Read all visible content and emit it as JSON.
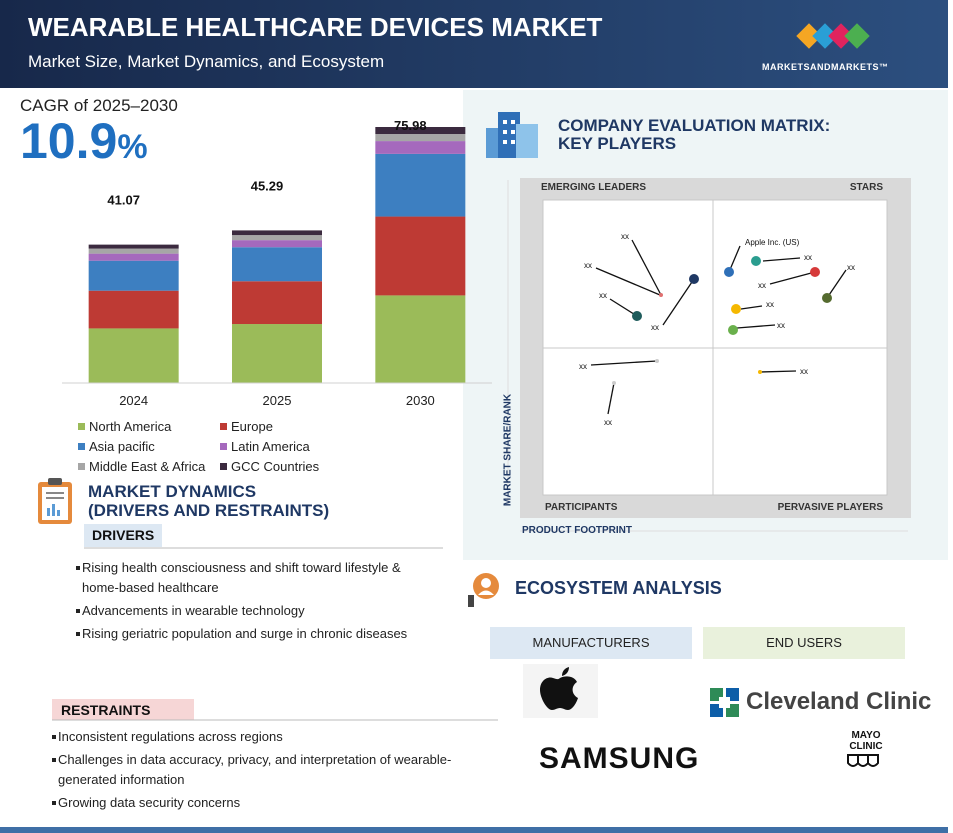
{
  "header": {
    "title": "WEARABLE HEALTHCARE DEVICES MARKET",
    "subtitle": "Market Size, Market Dynamics, and Ecosystem",
    "logo": "MARKETSANDMARKETS™"
  },
  "cagr": {
    "label": "CAGR of 2025–2030",
    "value": 10.9,
    "unit": "%"
  },
  "chart_data": {
    "type": "bar",
    "stacked": true,
    "categories": [
      "2024",
      "2025",
      "2030"
    ],
    "series": [
      {
        "name": "North America",
        "color": "#9bbb59",
        "values": [
          16.2,
          17.5,
          26.0
        ]
      },
      {
        "name": "Europe",
        "color": "#be3a34",
        "values": [
          11.2,
          12.7,
          23.4
        ]
      },
      {
        "name": "Asia pacific",
        "color": "#3d7fc1",
        "values": [
          8.9,
          10.1,
          18.6
        ]
      },
      {
        "name": "Latin America",
        "color": "#a569bd",
        "values": [
          2.1,
          2.1,
          3.8
        ]
      },
      {
        "name": "Middle East & Africa",
        "color": "#a6a6a6",
        "values": [
          1.5,
          1.5,
          2.1
        ]
      },
      {
        "name": "GCC Countries",
        "color": "#3b2a3f",
        "values": [
          1.17,
          1.39,
          2.08
        ]
      }
    ],
    "totals": [
      41.07,
      45.29,
      75.98
    ]
  },
  "matrix": {
    "title": [
      "COMPANY EVALUATION MATRIX:",
      "KEY PLAYERS"
    ],
    "quadrants": {
      "emerging_leaders": "EMERGING LEADERS",
      "stars": "STARS",
      "participants": "PARTICIPANTS",
      "pervasive_players": "PERVASIVE PLAYERS"
    },
    "y_axis": "MARKET SHARE/RANK",
    "x_axis": "PRODUCT FOOTPRINT",
    "points": [
      "xx",
      "xx",
      "xx",
      "xx",
      "Apple Inc. (US)",
      "xx",
      "xx",
      "xx",
      "xx",
      "xx",
      "xx",
      "xx",
      "xx"
    ]
  },
  "dynamics": {
    "title": [
      "MARKET DYNAMICS",
      "(DRIVERS AND RESTRAINTS)"
    ],
    "drivers": {
      "heading": "DRIVERS",
      "items": [
        "Rising health consciousness and shift toward lifestyle & home-based healthcare",
        "Advancements in wearable technology",
        "Rising geriatric population and surge in chronic diseases"
      ]
    },
    "restraints": {
      "heading": "RESTRAINTS",
      "items": [
        "Inconsistent regulations across regions",
        "Challenges in data accuracy, privacy, and interpretation of wearable-generated information",
        "Growing data security concerns"
      ]
    }
  },
  "ecosystem": {
    "title": "ECOSYSTEM ANALYSIS",
    "manufacturers": {
      "heading": "MANUFACTURERS",
      "logos": [
        "SAMSUNG"
      ]
    },
    "end_users": {
      "heading": "END USERS",
      "logos": [
        "Cleveland Clinic",
        "MAYO",
        "CLINIC"
      ]
    }
  }
}
